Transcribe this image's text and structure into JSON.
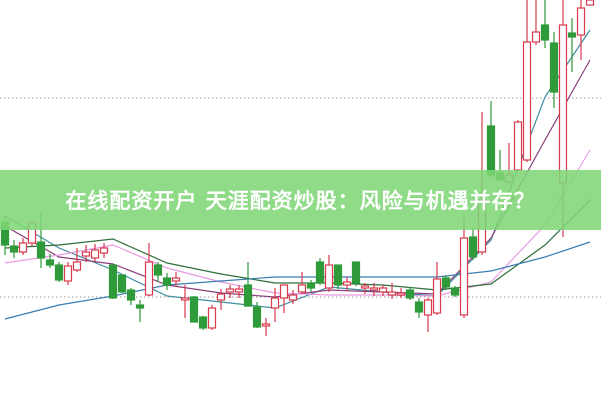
{
  "title": "在线配资开户 天涯配资炒股：风险与机遇并存？",
  "colors": {
    "up": "#d8394c",
    "down": "#2e9a3a",
    "banner": "#80d676",
    "grid": "#999999"
  },
  "chart_data": {
    "type": "candlestick",
    "grid": "dotted horizontal",
    "ohlc_note": "[open, close, high, low]",
    "candles": [
      [
        178,
        155,
        185,
        145
      ],
      [
        154,
        148,
        160,
        142
      ],
      [
        148,
        157,
        162,
        145
      ],
      [
        157,
        177,
        180,
        154
      ],
      [
        158,
        142,
        188,
        132
      ],
      [
        140,
        135,
        146,
        132
      ],
      [
        135,
        120,
        138,
        118
      ],
      [
        119,
        134,
        138,
        115
      ],
      [
        130,
        138,
        152,
        128
      ],
      [
        144,
        148,
        155,
        138
      ],
      [
        142,
        150,
        156,
        138
      ],
      [
        147,
        152,
        157,
        142
      ],
      [
        135,
        102,
        135,
        101
      ],
      [
        125,
        108,
        125,
        107
      ],
      [
        110,
        100,
        112,
        95
      ],
      [
        95,
        92,
        100,
        78
      ],
      [
        105,
        138,
        157,
        104
      ],
      [
        135,
        125,
        138,
        118
      ],
      [
        122,
        115,
        127,
        110
      ],
      [
        119,
        122,
        128,
        113
      ],
      [
        100,
        102,
        115,
        82
      ],
      [
        103,
        78,
        104,
        78
      ],
      [
        83,
        72,
        84,
        70
      ],
      [
        72,
        92,
        95,
        70
      ],
      [
        100,
        106,
        111,
        90
      ],
      [
        108,
        111,
        115,
        102
      ],
      [
        108,
        111,
        115,
        102
      ],
      [
        115,
        94,
        138,
        93
      ],
      [
        93,
        73,
        98,
        72
      ],
      [
        74,
        76,
        82,
        64
      ],
      [
        92,
        102,
        112,
        78
      ],
      [
        102,
        115,
        115,
        87
      ],
      [
        100,
        105,
        110,
        96
      ],
      [
        108,
        115,
        128,
        106
      ],
      [
        117,
        112,
        120,
        108
      ],
      [
        138,
        117,
        142,
        115
      ],
      [
        112,
        135,
        145,
        108
      ],
      [
        135,
        115,
        135,
        111
      ],
      [
        115,
        118,
        123,
        109
      ],
      [
        138,
        117,
        138,
        114
      ],
      [
        112,
        114,
        117,
        106
      ],
      [
        110,
        112,
        117,
        104
      ],
      [
        108,
        112,
        115,
        104
      ],
      [
        105,
        108,
        117,
        101
      ],
      [
        105,
        107,
        112,
        102
      ],
      [
        110,
        102,
        113,
        100
      ],
      [
        98,
        88,
        102,
        82
      ],
      [
        85,
        100,
        102,
        68
      ],
      [
        87,
        121,
        138,
        85
      ],
      [
        122,
        113,
        125,
        110
      ],
      [
        112,
        105,
        114,
        103
      ],
      [
        85,
        162,
        185,
        82
      ],
      [
        163,
        143,
        172,
        140
      ],
      [
        148,
        200,
        288,
        145
      ],
      [
        274,
        225,
        299,
        222
      ],
      [
        227,
        220,
        250,
        218
      ],
      [
        218,
        225,
        257,
        215
      ],
      [
        230,
        278,
        280,
        228
      ],
      [
        240,
        358,
        400,
        238
      ],
      [
        358,
        368,
        400,
        355
      ],
      [
        375,
        360,
        400,
        352
      ],
      [
        357,
        308,
        368,
        292
      ],
      [
        217,
        375,
        400,
        163
      ],
      [
        367,
        363,
        382,
        328
      ],
      [
        365,
        392,
        400,
        340
      ],
      [
        395,
        400,
        400,
        395
      ]
    ],
    "ma_sample_indices": [
      0,
      6,
      12,
      18,
      24,
      30,
      36,
      42,
      48,
      54,
      60,
      65
    ],
    "moving_averages": [
      {
        "color": "#3d8fa0",
        "values": [
          184,
          152,
          130,
          104,
          98,
          92,
          113,
          108,
          104,
          160,
          303,
          370
        ]
      },
      {
        "color": "#8a3f7a",
        "values": [
          174,
          143,
          136,
          115,
          107,
          103,
          110,
          108,
          106,
          162,
          260,
          340
        ]
      },
      {
        "color": "#e99be2",
        "values": [
          137,
          145,
          155,
          132,
          118,
          107,
          105,
          105,
          104,
          118,
          175,
          250
        ]
      },
      {
        "color": "#2f6f3a",
        "values": [
          152,
          155,
          161,
          137,
          126,
          117,
          117,
          115,
          110,
          116,
          155,
          200
        ]
      },
      {
        "color": "#3a7db0",
        "values": [
          81,
          95,
          104,
          115,
          119,
          123,
          123,
          123,
          123,
          129,
          143,
          158
        ]
      }
    ],
    "gridlines": [
      302,
      203,
      103
    ]
  }
}
